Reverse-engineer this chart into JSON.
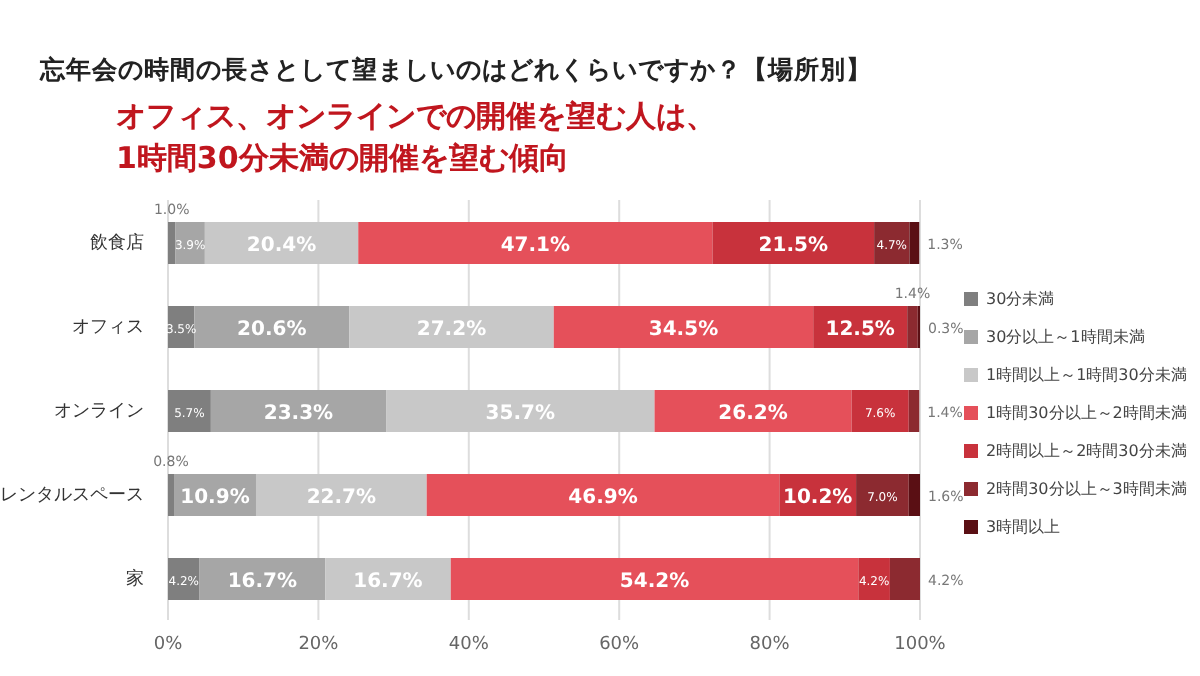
{
  "chart_data": {
    "type": "bar",
    "orientation": "horizontal",
    "stacked": true,
    "title": "忘年会の時間の長さとして望ましいのはどれくらいですか？【場所別】",
    "subtitle": "オフィス、オンラインでの開催を望む人は、\n1時間30分未満の開催を望む傾向",
    "categories": [
      "飲食店",
      "オフィス",
      "オンライン",
      "レンタルスペース",
      "家"
    ],
    "series": [
      {
        "name": "30分未満",
        "color": "#7f7f7f",
        "values": [
          1.0,
          3.5,
          5.7,
          0.8,
          4.2
        ],
        "value_labels": [
          "1.0%",
          "3.5%",
          "5.7%",
          "0.8%",
          "4.2%"
        ]
      },
      {
        "name": "30分以上～1時間未満",
        "color": "#a6a6a6",
        "values": [
          3.9,
          20.6,
          23.3,
          10.9,
          16.7
        ],
        "value_labels": [
          "3.9%",
          "20.6%",
          "23.3%",
          "10.9%",
          "16.7%"
        ]
      },
      {
        "name": "1時間以上～1時間30分未満",
        "color": "#c8c8c8",
        "values": [
          20.4,
          27.2,
          35.7,
          22.7,
          16.7
        ],
        "value_labels": [
          "20.4%",
          "27.2%",
          "35.7%",
          "22.7%",
          "16.7%"
        ]
      },
      {
        "name": "1時間30分以上～2時間未満",
        "color": "#e5505a",
        "values": [
          47.1,
          34.5,
          26.2,
          46.9,
          54.2
        ],
        "value_labels": [
          "47.1%",
          "34.5%",
          "26.2%",
          "46.9%",
          "54.2%"
        ]
      },
      {
        "name": "2時間以上～2時間30分未満",
        "color": "#c8323c",
        "values": [
          21.5,
          12.5,
          7.6,
          10.2,
          4.2
        ],
        "value_labels": [
          "21.5%",
          "12.5%",
          "7.6%",
          "10.2%",
          "4.2%"
        ]
      },
      {
        "name": "2時間30分以上～3時間未満",
        "color": "#8c2a30",
        "values": [
          4.7,
          1.4,
          1.4,
          7.0,
          4.2
        ],
        "value_labels": [
          "4.7%",
          "1.4%",
          "1.4%",
          "7.0%",
          "4.2%"
        ]
      },
      {
        "name": "3時間以上",
        "color": "#5a0f14",
        "values": [
          1.3,
          0.3,
          null,
          1.6,
          null
        ],
        "value_labels": [
          "1.3%",
          "0.3%",
          null,
          "1.6%",
          null
        ]
      }
    ],
    "xlim": [
      0,
      100
    ],
    "xticks": [
      {
        "value": 0,
        "label": "0%"
      },
      {
        "value": 20,
        "label": "20%"
      },
      {
        "value": 40,
        "label": "40%"
      },
      {
        "value": 60,
        "label": "60%"
      },
      {
        "value": 80,
        "label": "80%"
      },
      {
        "value": 100,
        "label": "100%"
      }
    ],
    "grid": "x",
    "legend": "right"
  }
}
